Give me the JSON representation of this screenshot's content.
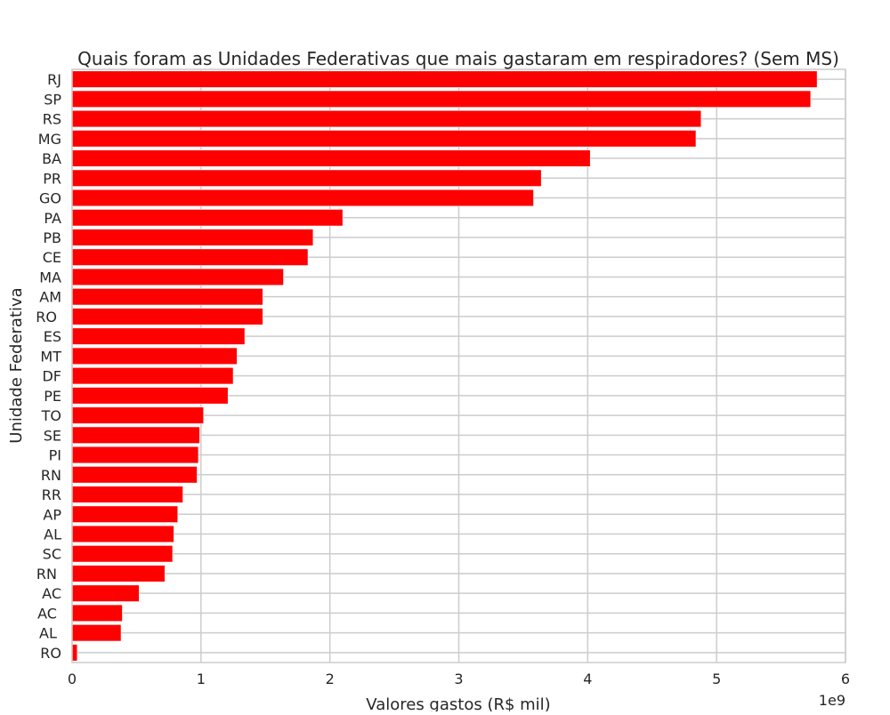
{
  "chart_data": {
    "type": "bar",
    "orientation": "horizontal",
    "title": "Quais foram as Unidades Federativas que mais gastaram em respiradores? (Sem MS)",
    "xlabel": "Valores gastos (R$ mil)",
    "ylabel": "Unidade Federativa",
    "x_offset_label": "1e9",
    "xlim": [
      0,
      6
    ],
    "x_ticks": [
      0,
      1,
      2,
      3,
      4,
      5,
      6
    ],
    "x_tick_labels": [
      "0",
      "1",
      "2",
      "3",
      "4",
      "5",
      "6"
    ],
    "grid": true,
    "bar_color": "#ff0000",
    "categories": [
      "RJ",
      "SP",
      "RS",
      "MG",
      "BA",
      "PR",
      "GO",
      "PA",
      "PB",
      "CE",
      "MA",
      "AM",
      "RO ",
      "ES",
      "MT",
      "DF",
      "PE",
      "TO",
      "SE",
      "PI",
      "RN",
      "RR",
      "AP",
      "AL",
      "SC",
      "RN ",
      "AC",
      "AC ",
      "AL ",
      "RO"
    ],
    "values": [
      5.78,
      5.73,
      4.88,
      4.84,
      4.02,
      3.64,
      3.58,
      2.1,
      1.87,
      1.83,
      1.64,
      1.48,
      1.48,
      1.34,
      1.28,
      1.25,
      1.21,
      1.02,
      0.99,
      0.98,
      0.97,
      0.86,
      0.82,
      0.79,
      0.78,
      0.72,
      0.52,
      0.39,
      0.38,
      0.04
    ]
  }
}
